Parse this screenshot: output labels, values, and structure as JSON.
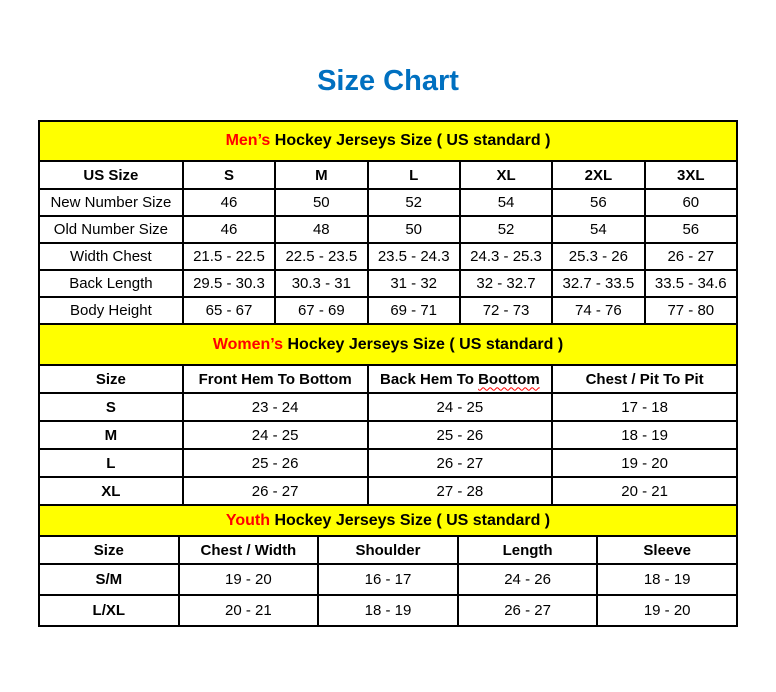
{
  "page": {
    "title": "Size Chart"
  },
  "colors": {
    "title_blue": "#0070C0",
    "band_yellow": "#FFFF00",
    "accent_red": "#FF0000",
    "border_black": "#000000"
  },
  "sections": [
    {
      "id": "mens",
      "band": {
        "highlight": "Men’s",
        "rest": " Hockey Jerseys Size ( US standard )"
      },
      "bold_labels": false,
      "header": [
        {
          "t": "US Size"
        },
        {
          "t": "S"
        },
        {
          "t": "M"
        },
        {
          "t": "L"
        },
        {
          "t": "XL"
        },
        {
          "t": "2XL"
        },
        {
          "t": "3XL"
        }
      ],
      "rows": [
        {
          "label": "New Number Size",
          "values": [
            "46",
            "50",
            "52",
            "54",
            "56",
            "60"
          ]
        },
        {
          "label": "Old Number Size",
          "values": [
            "46",
            "48",
            "50",
            "52",
            "54",
            "56"
          ]
        },
        {
          "label": "Width Chest",
          "values": [
            "21.5 - 22.5",
            "22.5 - 23.5",
            "23.5 - 24.3",
            "24.3 - 25.3",
            "25.3 - 26",
            "26 - 27"
          ]
        },
        {
          "label": "Back Length",
          "values": [
            "29.5 - 30.3",
            "30.3 - 31",
            "31 - 32",
            "32 - 32.7",
            "32.7 - 33.5",
            "33.5 - 34.6"
          ]
        },
        {
          "label": "Body Height",
          "values": [
            "65 - 67",
            "67 - 69",
            "69 - 71",
            "72 - 73",
            "74 - 76",
            "77 - 80"
          ]
        }
      ]
    },
    {
      "id": "womens",
      "band": {
        "highlight": "Women’s",
        "rest": " Hockey Jerseys Size ( US standard )"
      },
      "bold_labels": true,
      "header": [
        {
          "t": "Size"
        },
        {
          "t": "Front Hem To Bottom"
        },
        {
          "t": "Back Hem To ",
          "wavy": "Boottom"
        },
        {
          "t": "Chest / Pit To Pit"
        }
      ],
      "rows": [
        {
          "label": "S",
          "values": [
            "23 - 24",
            "24 - 25",
            "17 - 18"
          ]
        },
        {
          "label": "M",
          "values": [
            "24 - 25",
            "25 - 26",
            "18 - 19"
          ]
        },
        {
          "label": "L",
          "values": [
            "25 - 26",
            "26 - 27",
            "19 - 20"
          ]
        },
        {
          "label": "XL",
          "values": [
            "26 - 27",
            "27 - 28",
            "20 - 21"
          ]
        }
      ]
    },
    {
      "id": "youth",
      "band": {
        "highlight": "Youth",
        "rest": " Hockey Jerseys Size ( US standard )"
      },
      "bold_labels": true,
      "header": [
        {
          "t": "Size"
        },
        {
          "t": "Chest / Width"
        },
        {
          "t": "Shoulder"
        },
        {
          "t": "Length"
        },
        {
          "t": "Sleeve"
        }
      ],
      "rows": [
        {
          "label": "S/M",
          "values": [
            "19 - 20",
            "16 - 17",
            "24 - 26",
            "18 - 19"
          ]
        },
        {
          "label": "L/XL",
          "values": [
            "20 - 21",
            "18 - 19",
            "26 - 27",
            "19 - 20"
          ]
        }
      ]
    }
  ]
}
